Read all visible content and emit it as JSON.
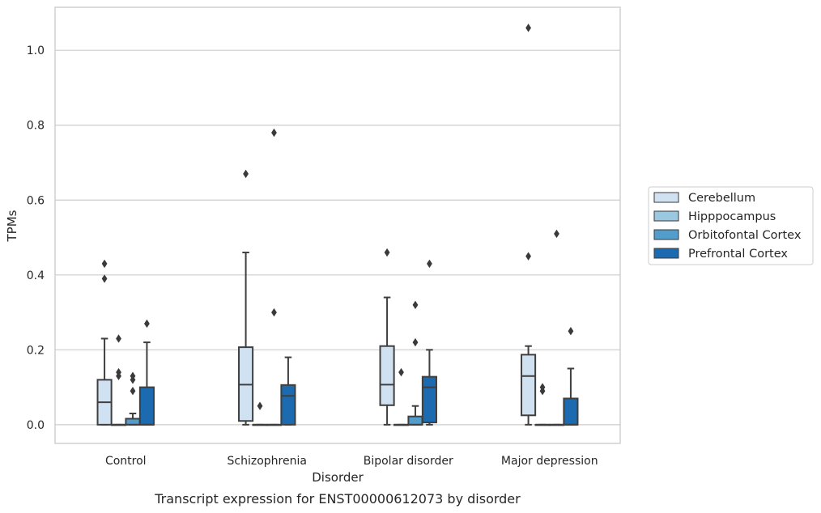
{
  "chart_data": {
    "type": "box",
    "caption": "Transcript expression for ENST00000612073 by disorder",
    "xlabel": "Disorder",
    "ylabel": "TPMs",
    "ylim": [
      -0.05,
      1.115
    ],
    "yticks": [
      0.0,
      0.2,
      0.4,
      0.6,
      0.8,
      1.0
    ],
    "ytick_labels": [
      "0.0",
      "0.2",
      "0.4",
      "0.6",
      "0.8",
      "1.0"
    ],
    "grid": "horizontal",
    "legend_position": "right",
    "categories": [
      "Control",
      "Schizophrenia",
      "Bipolar disorder",
      "Major depression"
    ],
    "series": [
      {
        "name": "Cerebellum",
        "color": "#d0e1f2",
        "boxes": [
          {
            "q1": 0.0,
            "median": 0.06,
            "q3": 0.12,
            "whisker_low": 0.0,
            "whisker_high": 0.23,
            "outliers": [
              0.39,
              0.43
            ]
          },
          {
            "q1": 0.01,
            "median": 0.107,
            "q3": 0.207,
            "whisker_low": 0.0,
            "whisker_high": 0.46,
            "outliers": [
              0.67
            ]
          },
          {
            "q1": 0.052,
            "median": 0.107,
            "q3": 0.21,
            "whisker_low": 0.0,
            "whisker_high": 0.34,
            "outliers": [
              0.46
            ]
          },
          {
            "q1": 0.025,
            "median": 0.13,
            "q3": 0.187,
            "whisker_low": 0.0,
            "whisker_high": 0.21,
            "outliers": [
              0.45,
              1.06
            ]
          }
        ]
      },
      {
        "name": "Hipppocampus",
        "color": "#9ac8e0",
        "boxes": [
          {
            "q1": 0.0,
            "median": 0.0,
            "q3": 0.0,
            "whisker_low": 0.0,
            "whisker_high": 0.0,
            "outliers": [
              0.13,
              0.14,
              0.23
            ]
          },
          {
            "q1": 0.0,
            "median": 0.0,
            "q3": 0.0,
            "whisker_low": 0.0,
            "whisker_high": 0.0,
            "outliers": [
              0.05
            ]
          },
          {
            "q1": 0.0,
            "median": 0.0,
            "q3": 0.0,
            "whisker_low": 0.0,
            "whisker_high": 0.0,
            "outliers": [
              0.14
            ]
          },
          {
            "q1": 0.0,
            "median": 0.0,
            "q3": 0.0,
            "whisker_low": 0.0,
            "whisker_high": 0.0,
            "outliers": [
              0.09,
              0.1
            ]
          }
        ]
      },
      {
        "name": "Orbitofontal Cortex",
        "color": "#529dcc",
        "boxes": [
          {
            "q1": 0.0,
            "median": 0.0,
            "q3": 0.016,
            "whisker_low": 0.0,
            "whisker_high": 0.03,
            "outliers": [
              0.09,
              0.12,
              0.13
            ]
          },
          {
            "q1": 0.0,
            "median": 0.0,
            "q3": 0.0,
            "whisker_low": 0.0,
            "whisker_high": 0.0,
            "outliers": [
              0.3,
              0.78
            ]
          },
          {
            "q1": 0.0,
            "median": 0.0,
            "q3": 0.022,
            "whisker_low": 0.0,
            "whisker_high": 0.05,
            "outliers": [
              0.22,
              0.32
            ]
          },
          {
            "q1": 0.0,
            "median": 0.0,
            "q3": 0.0,
            "whisker_low": 0.0,
            "whisker_high": 0.0,
            "outliers": [
              0.51
            ]
          }
        ]
      },
      {
        "name": "Prefrontal Cortex",
        "color": "#1c6aaf",
        "boxes": [
          {
            "q1": 0.0,
            "median": 0.0,
            "q3": 0.1,
            "whisker_low": 0.0,
            "whisker_high": 0.22,
            "outliers": [
              0.27
            ]
          },
          {
            "q1": 0.0,
            "median": 0.077,
            "q3": 0.106,
            "whisker_low": 0.0,
            "whisker_high": 0.18,
            "outliers": []
          },
          {
            "q1": 0.006,
            "median": 0.1,
            "q3": 0.128,
            "whisker_low": 0.0,
            "whisker_high": 0.2,
            "outliers": [
              0.43
            ]
          },
          {
            "q1": 0.0,
            "median": 0.0,
            "q3": 0.07,
            "whisker_low": 0.0,
            "whisker_high": 0.15,
            "outliers": [
              0.25
            ]
          }
        ]
      }
    ]
  }
}
